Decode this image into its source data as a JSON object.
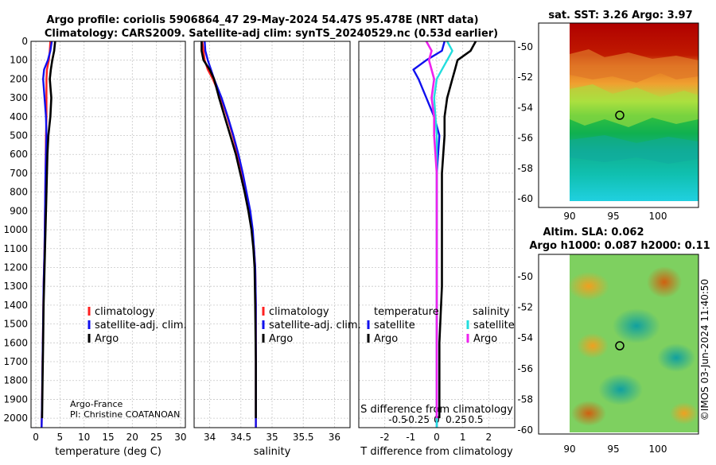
{
  "title": {
    "line1": "Argo profile: coriolis 5906864_47 29-May-2024 54.47S 95.478E (NRT data)",
    "line2": "Climatology: CARS2009. Satellite-adj clim: synTS_20240529.nc (0.53d earlier)"
  },
  "colors": {
    "climatology": "#ff2020",
    "satellite": "#1010ee",
    "argo": "#000000",
    "sal_satellite": "#22dddd",
    "sal_argo": "#ee22ee",
    "grid": "#c8c8c8"
  },
  "depth_axis": {
    "ylim": [
      0,
      2050
    ],
    "ticks": [
      "0",
      "100",
      "200",
      "300",
      "400",
      "500",
      "600",
      "700",
      "800",
      "900",
      "1000",
      "1100",
      "1200",
      "1300",
      "1400",
      "1500",
      "1600",
      "1700",
      "1800",
      "1900",
      "2000"
    ]
  },
  "credit": {
    "line1": "Argo-France",
    "line2": "PI: Christine COATANOAN"
  },
  "legend_profiles": {
    "climatology": "climatology",
    "satellite": "satellite-adj. clim.",
    "argo": "Argo"
  },
  "legend_diff": {
    "temperature_header": "temperature",
    "salinity_header": "salinity",
    "satellite": "satellite",
    "argo": "Argo"
  },
  "maps": {
    "sst_title": "sat. SST: 3.26 Argo: 3.97",
    "sla_title1": "Altim. SLA: 0.062",
    "sla_title2": "Argo h1000: 0.087 h2000: 0.11",
    "lat_ticks": [
      "-50",
      "-52",
      "-54",
      "-56",
      "-58",
      "-60"
    ],
    "lon_ticks": [
      "90",
      "95",
      "100"
    ],
    "timestamp": "©IMOS 03-Jun-2024 11:40:50"
  },
  "chart_data": [
    {
      "type": "line",
      "name": "temperature-profile",
      "xlabel": "temperature (deg C)",
      "ylabel": "",
      "xlim": [
        -1,
        31
      ],
      "ylim": [
        2050,
        0
      ],
      "xticks": [
        0,
        5,
        10,
        15,
        20,
        25,
        30
      ],
      "xtick_labels": [
        "0",
        "5",
        "10",
        "15",
        "20",
        "25",
        "30"
      ],
      "series": [
        {
          "name": "climatology",
          "x": [
            3.0,
            2.9,
            2.7,
            2.3,
            2.2,
            2.2,
            2.2,
            2.1,
            2.0,
            1.9,
            1.8,
            1.6,
            1.5,
            1.4,
            1.3,
            1.2
          ],
          "y": [
            0,
            50,
            100,
            150,
            200,
            300,
            400,
            500,
            700,
            900,
            1100,
            1300,
            1500,
            1700,
            1900,
            2050
          ]
        },
        {
          "name": "satellite-adj. clim.",
          "x": [
            3.3,
            3.0,
            2.5,
            1.7,
            1.5,
            1.8,
            2.1,
            2.2,
            2.0,
            1.9,
            1.8,
            1.6,
            1.5,
            1.4,
            1.3,
            1.2
          ],
          "y": [
            0,
            50,
            100,
            150,
            200,
            300,
            400,
            500,
            700,
            900,
            1100,
            1300,
            1500,
            1700,
            1900,
            2050
          ]
        },
        {
          "name": "Argo",
          "x": [
            4.0,
            3.8,
            3.4,
            3.1,
            2.9,
            3.2,
            3.0,
            2.6,
            2.4,
            2.2,
            2.0,
            1.8,
            1.6,
            1.5,
            1.4,
            1.3
          ],
          "y": [
            0,
            50,
            100,
            150,
            200,
            300,
            400,
            500,
            600,
            800,
            1000,
            1200,
            1400,
            1600,
            1800,
            2000
          ]
        }
      ]
    },
    {
      "type": "line",
      "name": "salinity-profile",
      "xlabel": "salinity",
      "ylabel": "",
      "xlim": [
        33.75,
        36.25
      ],
      "ylim": [
        2050,
        0
      ],
      "xticks": [
        34,
        34.5,
        35,
        35.5,
        36
      ],
      "xtick_labels": [
        "34",
        "34.5",
        "35",
        "35.5",
        "36"
      ],
      "series": [
        {
          "name": "climatology",
          "x": [
            33.88,
            33.9,
            33.92,
            33.97,
            34.05,
            34.18,
            34.28,
            34.37,
            34.45,
            34.52,
            34.58,
            34.64,
            34.68,
            34.71,
            34.73,
            34.74,
            34.74,
            34.74
          ],
          "y": [
            0,
            50,
            100,
            150,
            200,
            300,
            400,
            500,
            600,
            700,
            800,
            900,
            1000,
            1100,
            1200,
            1400,
            1700,
            2050
          ]
        },
        {
          "name": "satellite-adj. clim.",
          "x": [
            33.92,
            33.93,
            33.97,
            34.02,
            34.07,
            34.19,
            34.29,
            34.38,
            34.46,
            34.53,
            34.59,
            34.65,
            34.69,
            34.71,
            34.73,
            34.74,
            34.74,
            34.74
          ],
          "y": [
            0,
            50,
            100,
            150,
            200,
            300,
            400,
            500,
            600,
            700,
            800,
            900,
            1000,
            1100,
            1200,
            1400,
            1700,
            2050
          ]
        },
        {
          "name": "Argo",
          "x": [
            33.87,
            33.87,
            33.9,
            34.0,
            34.07,
            34.15,
            34.24,
            34.33,
            34.42,
            34.49,
            34.56,
            34.62,
            34.67,
            34.7,
            34.72,
            34.73,
            34.74,
            34.74
          ],
          "y": [
            0,
            50,
            100,
            150,
            200,
            300,
            400,
            500,
            600,
            700,
            800,
            900,
            1000,
            1100,
            1200,
            1400,
            1700,
            2000
          ]
        }
      ]
    },
    {
      "type": "line",
      "name": "difference-from-climatology",
      "xlabel": "T difference from climatology",
      "x2label": "S difference from climatology",
      "xlim": [
        -3,
        3
      ],
      "ylim": [
        2050,
        0
      ],
      "xticks": [
        -2,
        -1,
        0,
        1,
        2
      ],
      "xtick_labels": [
        "-2",
        "-1",
        "0",
        "1",
        "2"
      ],
      "x2ticks": [
        -1.5,
        -0.75,
        0,
        0.75,
        1.5
      ],
      "x2tick_labels": [
        "-0.5",
        "-0.25",
        "0",
        "0.25",
        "0.5"
      ],
      "series": [
        {
          "name": "temperature satellite",
          "x": [
            0.3,
            0.2,
            -0.4,
            -0.9,
            -0.7,
            -0.4,
            -0.1,
            0.1,
            0.0,
            0.0,
            0.0,
            0.0,
            0.0,
            0.0
          ],
          "y": [
            0,
            50,
            100,
            150,
            200,
            300,
            400,
            500,
            700,
            1000,
            1300,
            1600,
            1900,
            2050
          ]
        },
        {
          "name": "temperature Argo",
          "x": [
            1.5,
            1.3,
            0.8,
            0.7,
            0.6,
            0.4,
            0.3,
            0.3,
            0.2,
            0.2,
            0.2,
            0.1,
            0.1,
            0.1
          ],
          "y": [
            0,
            50,
            100,
            150,
            200,
            300,
            400,
            500,
            700,
            1000,
            1300,
            1600,
            1900,
            2000
          ]
        },
        {
          "name": "salinity satellite",
          "x": [
            0.4,
            0.6,
            0.4,
            0.2,
            0.0,
            -0.1,
            0.0,
            0.0,
            0.0,
            0.0,
            0.0,
            0.0
          ],
          "y": [
            0,
            50,
            100,
            150,
            200,
            300,
            500,
            700,
            1000,
            1400,
            1800,
            2050
          ]
        },
        {
          "name": "salinity Argo",
          "x": [
            -0.4,
            -0.2,
            -0.3,
            -0.1,
            -0.2,
            -0.1,
            -0.1,
            0.0,
            0.0,
            0.0,
            0.0,
            0.0
          ],
          "y": [
            0,
            50,
            100,
            200,
            300,
            400,
            500,
            700,
            900,
            1200,
            1600,
            2000
          ]
        }
      ]
    }
  ]
}
